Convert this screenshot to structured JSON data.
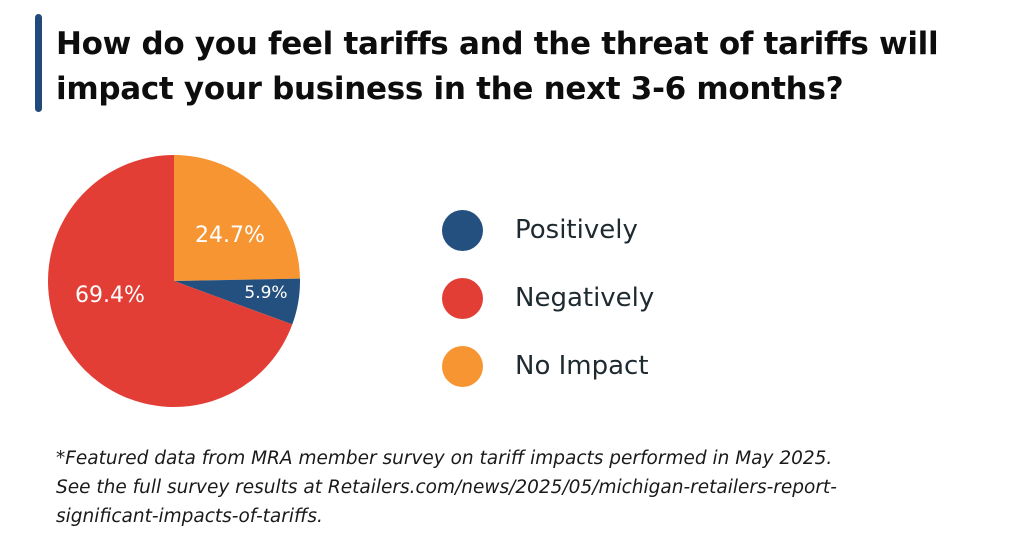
{
  "title": {
    "lines": [
      "How do you feel tariffs and the threat of tariffs will",
      "impact your business in the next 3-6 months?"
    ]
  },
  "chart_data": {
    "type": "pie",
    "title": "How do you feel tariffs and the threat of tariffs will impact your business in the next 3-6 months?",
    "categories": [
      "Positively",
      "Negatively",
      "No Impact"
    ],
    "values": [
      5.9,
      69.4,
      24.7
    ],
    "data_labels": [
      "5.9%",
      "69.4%",
      "24.7%"
    ],
    "colors": [
      "#24507f",
      "#e23e35",
      "#f79532"
    ],
    "start": "12 o'clock, No Impact first, clockwise",
    "legend_position": "right"
  },
  "legend": {
    "items": [
      {
        "label": "Positively",
        "color": "#24507f"
      },
      {
        "label": "Negatively",
        "color": "#e23e35"
      },
      {
        "label": "No Impact",
        "color": "#f79532"
      }
    ]
  },
  "footnote": {
    "lines": [
      "*Featured data from MRA member survey on tariff impacts performed in May 2025.",
      "See the full survey results at Retailers.com/news/2025/05/michigan-retailers-report-",
      "significant-impacts-of-tariffs."
    ]
  },
  "accent_color": "#1f4a7a"
}
